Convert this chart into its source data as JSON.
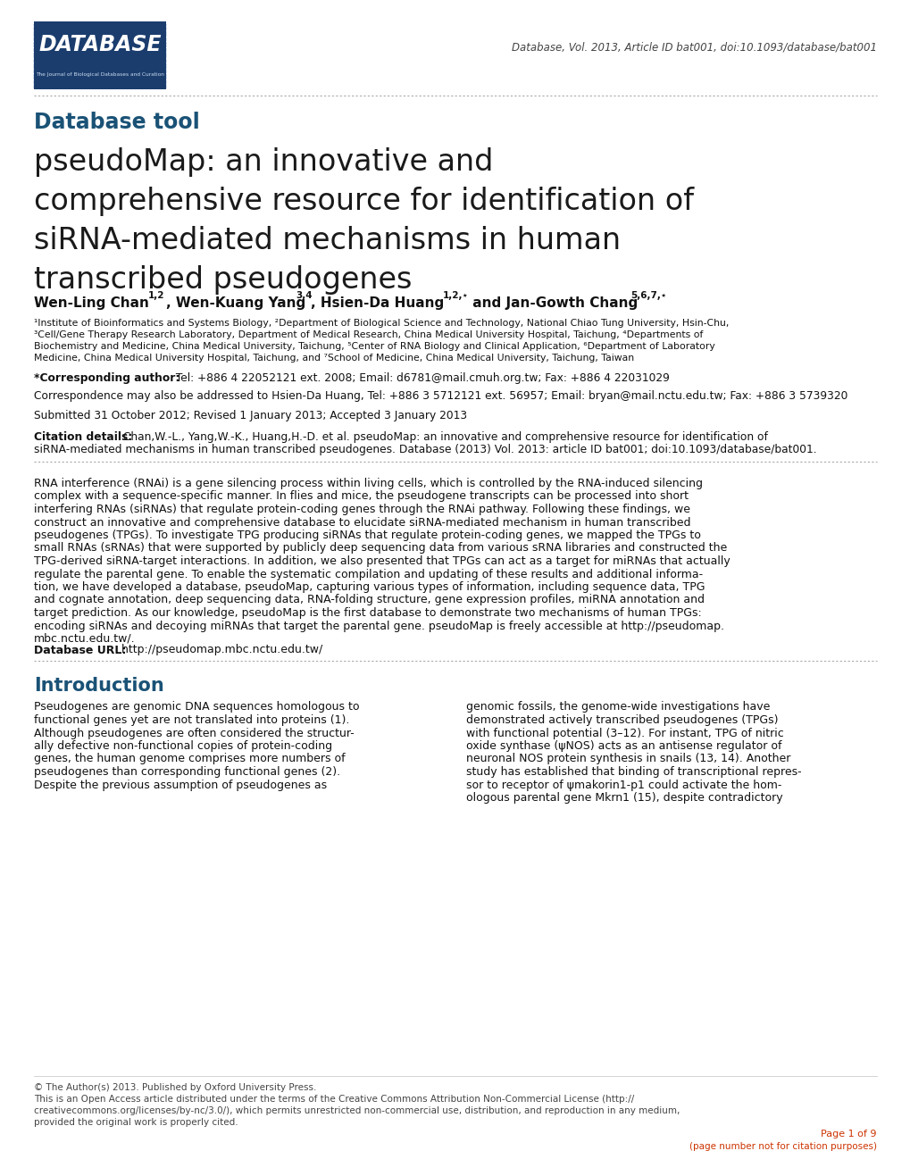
{
  "bg_color": "#ffffff",
  "journal_header": "Database, Vol. 2013, Article ID bat001, doi:10.1093/database/bat001",
  "section_label": "Database tool",
  "title_line1": "pseudoMap: an innovative and",
  "title_line2": "comprehensive resource for identification of",
  "title_line3": "siRNA-mediated mechanisms in human",
  "title_line4": "transcribed pseudogenes",
  "author_line": "Wen-Ling Chan¹², Wen-Kuang Yang³⁴, Hsien-Da Huang¹²⋆ and Jan-Gowth Chang⁵⁶⁷⋆",
  "aff_line1": "¹Institute of Bioinformatics and Systems Biology, ²Department of Biological Science and Technology, National Chiao Tung University, Hsin-Chu,",
  "aff_line2": "³Cell/Gene Therapy Research Laboratory, Department of Medical Research, China Medical University Hospital, Taichung, ⁴Departments of",
  "aff_line3": "Biochemistry and Medicine, China Medical University, Taichung, ⁵Center of RNA Biology and Clinical Application, ⁶Department of Laboratory",
  "aff_line4": "Medicine, China Medical University Hospital, Taichung, and ⁷School of Medicine, China Medical University, Taichung, Taiwan",
  "corr_bold": "*Corresponding author:",
  "corr_rest": " Tel: +886 4 22052121 ext. 2008; Email: d6781@mail.cmuh.org.tw; Fax: +886 4 22031029",
  "correspondence": "Correspondence may also be addressed to Hsien-Da Huang, Tel: +886 3 5712121 ext. 56957; Email: bryan@mail.nctu.edu.tw; Fax: +886 3 5739320",
  "submitted": "Submitted 31 October 2012; Revised 1 January 2013; Accepted 3 January 2013",
  "cite_bold": "Citation details:",
  "cite_line1": " Chan,W.-L., Yang,W.-K., Huang,H.-D. et al. pseudoMap: an innovative and comprehensive resource for identification of",
  "cite_line2": "siRNA-mediated mechanisms in human transcribed pseudogenes. Database (2013) Vol. 2013: article ID bat001; doi:10.1093/database/bat001.",
  "abs_lines": [
    "RNA interference (RNAi) is a gene silencing process within living cells, which is controlled by the RNA-induced silencing",
    "complex with a sequence-specific manner. In flies and mice, the pseudogene transcripts can be processed into short",
    "interfering RNAs (siRNAs) that regulate protein-coding genes through the RNAi pathway. Following these findings, we",
    "construct an innovative and comprehensive database to elucidate siRNA-mediated mechanism in human transcribed",
    "pseudogenes (TPGs). To investigate TPG producing siRNAs that regulate protein-coding genes, we mapped the TPGs to",
    "small RNAs (sRNAs) that were supported by publicly deep sequencing data from various sRNA libraries and constructed the",
    "TPG-derived siRNA-target interactions. In addition, we also presented that TPGs can act as a target for miRNAs that actually",
    "regulate the parental gene. To enable the systematic compilation and updating of these results and additional informa-",
    "tion, we have developed a database, pseudoMap, capturing various types of information, including sequence data, TPG",
    "and cognate annotation, deep sequencing data, RNA-folding structure, gene expression profiles, miRNA annotation and",
    "target prediction. As our knowledge, pseudoMap is the first database to demonstrate two mechanisms of human TPGs:",
    "encoding siRNAs and decoying miRNAs that target the parental gene. pseudoMap is freely accessible at http://pseudomap.",
    "mbc.nctu.edu.tw/."
  ],
  "db_url_bold": "Database URL:",
  "db_url": " http://pseudomap.mbc.nctu.edu.tw/",
  "intro_heading": "Introduction",
  "intro_col1": [
    "Pseudogenes are genomic DNA sequences homologous to",
    "functional genes yet are not translated into proteins (1).",
    "Although pseudogenes are often considered the structur-",
    "ally defective non-functional copies of protein-coding",
    "genes, the human genome comprises more numbers of",
    "pseudogenes than corresponding functional genes (2).",
    "Despite the previous assumption of pseudogenes as"
  ],
  "intro_col2": [
    "genomic fossils, the genome-wide investigations have",
    "demonstrated actively transcribed pseudogenes (TPGs)",
    "with functional potential (3–12). For instant, TPG of nitric",
    "oxide synthase (ψNOS) acts as an antisense regulator of",
    "neuronal NOS protein synthesis in snails (13, 14). Another",
    "study has established that binding of transcriptional repres-",
    "sor to receptor of ψmakorin1-p1 could activate the hom-",
    "ologous parental gene Mkrn1 (15), despite contradictory"
  ],
  "footer1": "© The Author(s) 2013. Published by Oxford University Press.",
  "footer2": "This is an Open Access article distributed under the terms of the Creative Commons Attribution Non-Commercial License (http://",
  "footer3": "creativecommons.org/licenses/by-nc/3.0/), which permits unrestricted non-commercial use, distribution, and reproduction in any medium,",
  "footer4": "provided the original work is properly cited.",
  "page1": "Page 1 of 9",
  "page2": "(page number not for citation purposes)",
  "section_color": "#1a5276",
  "page_color": "#cc3300"
}
